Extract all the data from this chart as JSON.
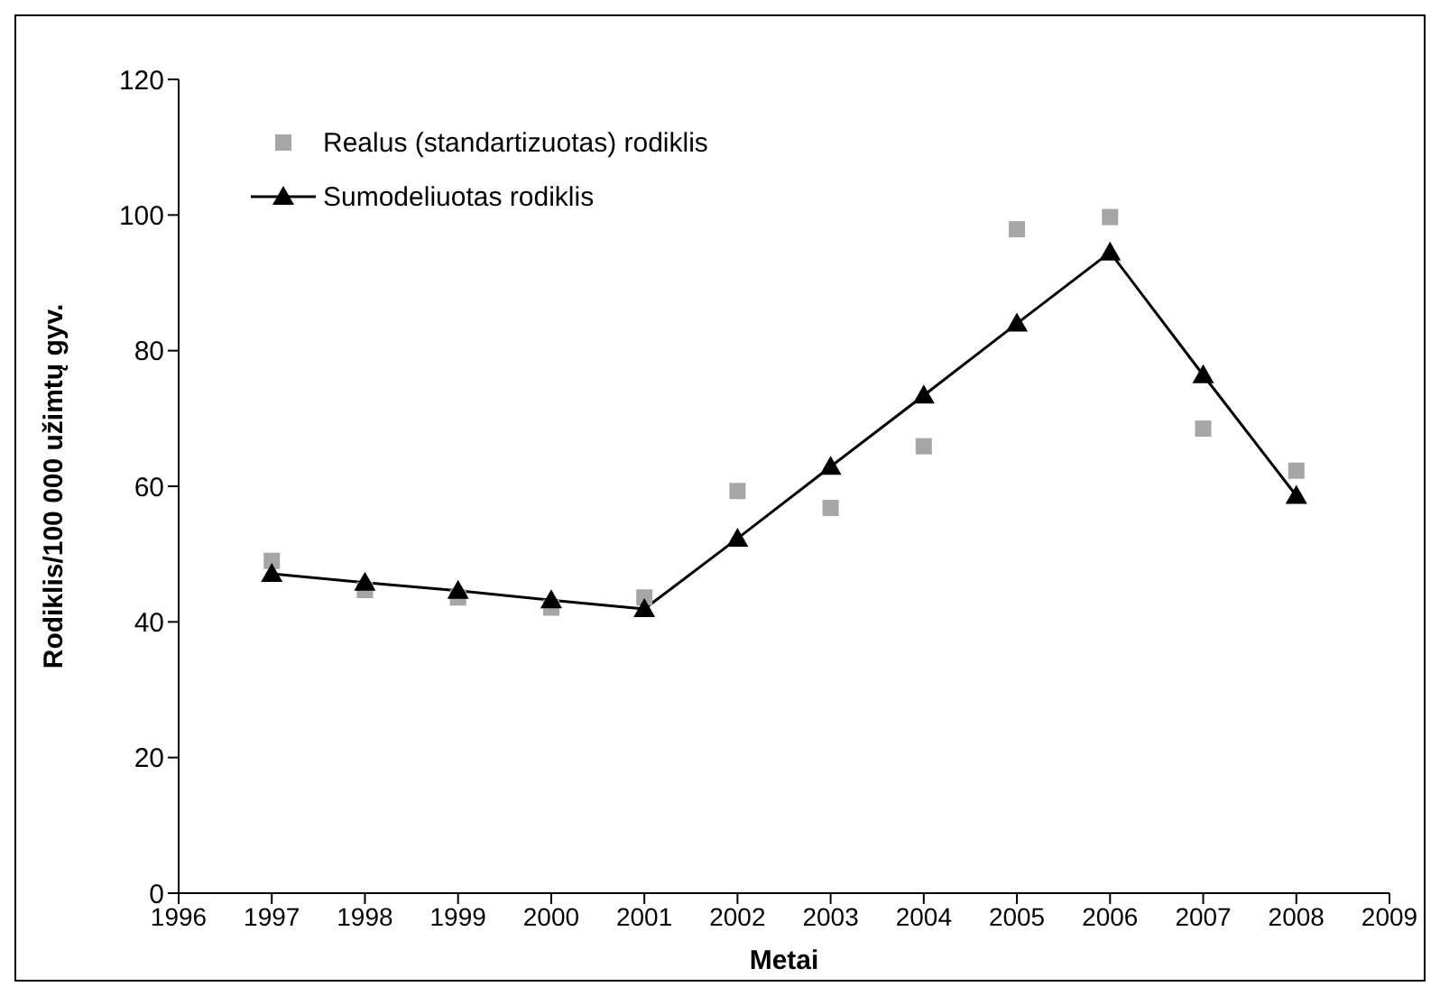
{
  "chart_data": {
    "type": "line",
    "xlabel": "Metai",
    "ylabel": "Rodiklis/100 000 užimtų gyv.",
    "x": [
      1997,
      1998,
      1999,
      2000,
      2001,
      2002,
      2003,
      2004,
      2005,
      2006,
      2007,
      2008
    ],
    "series": [
      {
        "name": "Realus (standartizuotas) rodiklis",
        "type": "scatter",
        "marker": "square",
        "color": "#a6a6a6",
        "values": [
          49.0,
          44.7,
          43.6,
          42.1,
          43.6,
          59.3,
          56.8,
          65.9,
          97.9,
          99.7,
          68.5,
          62.3
        ]
      },
      {
        "name": "Sumodeliuotas rodiklis",
        "marker": "triangle",
        "line_style": "solid",
        "color": "#000000",
        "values": [
          47.1,
          45.8,
          44.6,
          43.2,
          41.9,
          52.3,
          62.9,
          73.4,
          84.0,
          94.5,
          76.4,
          58.6
        ]
      }
    ],
    "xlim": [
      1996,
      2009
    ],
    "xticks": [
      1996,
      1997,
      1998,
      1999,
      2000,
      2001,
      2002,
      2003,
      2004,
      2005,
      2006,
      2007,
      2008,
      2009
    ],
    "ylim": [
      0,
      120
    ],
    "yticks": [
      0,
      20,
      40,
      60,
      80,
      100,
      120
    ],
    "grid": false,
    "legend": "top left"
  }
}
